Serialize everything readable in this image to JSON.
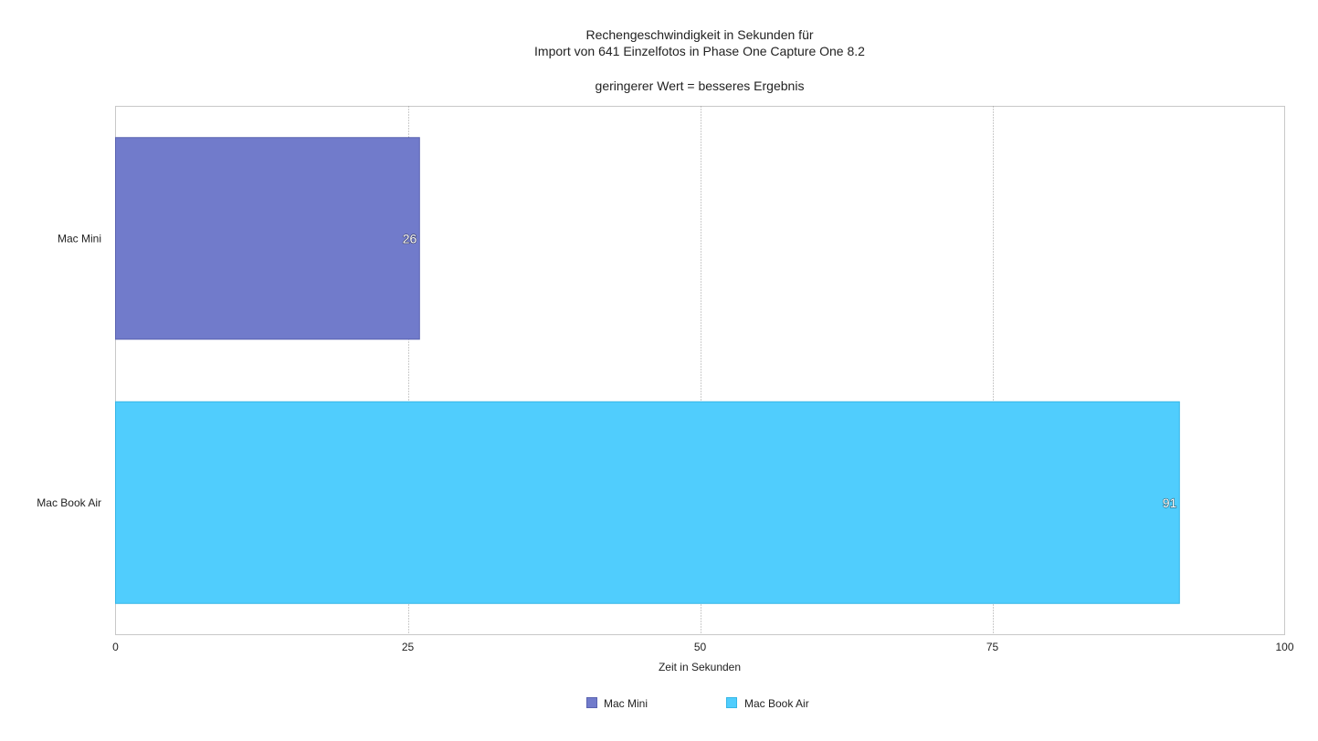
{
  "chart_data": {
    "type": "bar",
    "orientation": "horizontal",
    "title_lines": [
      "Rechengeschwindigkeit in Sekunden für",
      "Import von 641 Einzelfotos in Phase One Capture One 8.2"
    ],
    "subtitle": "geringerer Wert = besseres Ergebnis",
    "categories": [
      "Mac Mini",
      "Mac Book Air"
    ],
    "values": [
      26,
      91
    ],
    "data_labels": [
      "26",
      "91"
    ],
    "series": [
      {
        "name": "Mac Mini",
        "value": 26,
        "color": "#717bcb",
        "border": "#5a63b0"
      },
      {
        "name": "Mac Book Air",
        "value": 91,
        "color": "#50cdfd",
        "border": "#35b6e6"
      }
    ],
    "xlabel": "Zeit in Sekunden",
    "ylabel": "",
    "xlim": [
      0,
      100
    ],
    "x_ticks": [
      0,
      25,
      50,
      75,
      100
    ],
    "x_tick_labels": [
      "0",
      "25",
      "50",
      "75",
      "100"
    ],
    "grid": true,
    "legend_position": "bottom-center"
  }
}
